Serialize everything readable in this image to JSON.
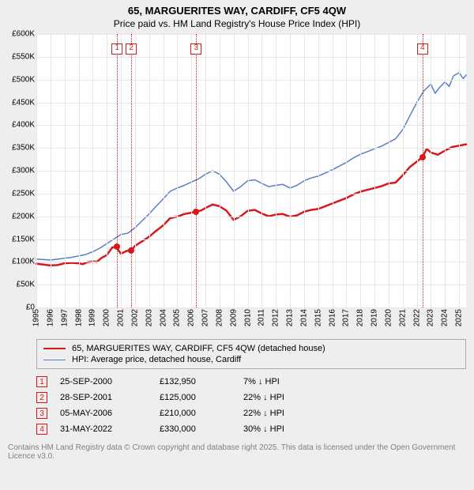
{
  "title": "65, MARGUERITES WAY, CARDIFF, CF5 4QW",
  "subtitle": "Price paid vs. HM Land Registry's House Price Index (HPI)",
  "chart": {
    "type": "line",
    "background": "#ffffff",
    "grid_color": "#e6e6e6",
    "x": {
      "min": 1995,
      "max": 2025.5,
      "ticks": [
        1995,
        1996,
        1997,
        1998,
        1999,
        2000,
        2001,
        2002,
        2003,
        2004,
        2005,
        2006,
        2007,
        2008,
        2009,
        2010,
        2011,
        2012,
        2013,
        2014,
        2015,
        2016,
        2017,
        2018,
        2019,
        2020,
        2021,
        2022,
        2023,
        2024,
        2025
      ]
    },
    "y": {
      "min": 0,
      "max": 600,
      "ticks": [
        0,
        50,
        100,
        150,
        200,
        250,
        300,
        350,
        400,
        450,
        500,
        550,
        600
      ],
      "labels": [
        "£0",
        "£50K",
        "£100K",
        "£150K",
        "£200K",
        "£250K",
        "£300K",
        "£350K",
        "£400K",
        "£450K",
        "£500K",
        "£550K",
        "£600K"
      ]
    },
    "series": [
      {
        "name": "65, MARGUERITES WAY, CARDIFF, CF5 4QW (detached house)",
        "color": "#d8171a",
        "width": 2.5,
        "points": [
          [
            1995,
            96
          ],
          [
            1995.5,
            94
          ],
          [
            1996,
            92
          ],
          [
            1996.5,
            93
          ],
          [
            1997,
            97
          ],
          [
            1997.5,
            98
          ],
          [
            1998,
            97
          ],
          [
            1998.3,
            95
          ],
          [
            1998.6,
            99
          ],
          [
            1999,
            101
          ],
          [
            1999.3,
            100
          ],
          [
            1999.6,
            108
          ],
          [
            2000,
            115
          ],
          [
            2000.4,
            132
          ],
          [
            2000.7,
            131
          ],
          [
            2001,
            118
          ],
          [
            2001.4,
            124
          ],
          [
            2001.74,
            125
          ],
          [
            2002,
            135
          ],
          [
            2002.5,
            145
          ],
          [
            2003,
            155
          ],
          [
            2003.5,
            168
          ],
          [
            2004,
            180
          ],
          [
            2004.5,
            196
          ],
          [
            2005,
            199
          ],
          [
            2005.5,
            205
          ],
          [
            2006,
            208
          ],
          [
            2006.34,
            210
          ],
          [
            2006.7,
            213
          ],
          [
            2007,
            218
          ],
          [
            2007.5,
            226
          ],
          [
            2008,
            222
          ],
          [
            2008.5,
            212
          ],
          [
            2009,
            192
          ],
          [
            2009.5,
            200
          ],
          [
            2010,
            212
          ],
          [
            2010.5,
            214
          ],
          [
            2011,
            206
          ],
          [
            2011.5,
            200
          ],
          [
            2012,
            204
          ],
          [
            2012.5,
            205
          ],
          [
            2013,
            199
          ],
          [
            2013.5,
            202
          ],
          [
            2014,
            210
          ],
          [
            2014.5,
            214
          ],
          [
            2015,
            216
          ],
          [
            2015.5,
            222
          ],
          [
            2016,
            228
          ],
          [
            2016.5,
            234
          ],
          [
            2017,
            240
          ],
          [
            2017.5,
            248
          ],
          [
            2018,
            254
          ],
          [
            2018.5,
            258
          ],
          [
            2019,
            262
          ],
          [
            2019.5,
            266
          ],
          [
            2020,
            272
          ],
          [
            2020.5,
            274
          ],
          [
            2021,
            290
          ],
          [
            2021.5,
            308
          ],
          [
            2022,
            320
          ],
          [
            2022.41,
            330
          ],
          [
            2022.7,
            348
          ],
          [
            2023,
            340
          ],
          [
            2023.5,
            335
          ],
          [
            2024,
            344
          ],
          [
            2024.5,
            352
          ],
          [
            2025,
            355
          ],
          [
            2025.5,
            358
          ]
        ]
      },
      {
        "name": "HPI: Average price, detached house, Cardiff",
        "color": "#5a7fbf",
        "width": 1.5,
        "points": [
          [
            1995,
            106
          ],
          [
            1995.5,
            105
          ],
          [
            1996,
            104
          ],
          [
            1996.5,
            106
          ],
          [
            1997,
            108
          ],
          [
            1997.5,
            110
          ],
          [
            1998,
            113
          ],
          [
            1998.5,
            116
          ],
          [
            1999,
            122
          ],
          [
            1999.5,
            130
          ],
          [
            2000,
            140
          ],
          [
            2000.5,
            150
          ],
          [
            2001,
            160
          ],
          [
            2001.5,
            163
          ],
          [
            2002,
            175
          ],
          [
            2002.5,
            190
          ],
          [
            2003,
            205
          ],
          [
            2003.5,
            222
          ],
          [
            2004,
            238
          ],
          [
            2004.5,
            255
          ],
          [
            2005,
            262
          ],
          [
            2005.5,
            268
          ],
          [
            2006,
            275
          ],
          [
            2006.5,
            282
          ],
          [
            2007,
            292
          ],
          [
            2007.5,
            300
          ],
          [
            2008,
            292
          ],
          [
            2008.5,
            275
          ],
          [
            2009,
            255
          ],
          [
            2009.5,
            265
          ],
          [
            2010,
            278
          ],
          [
            2010.5,
            280
          ],
          [
            2011,
            272
          ],
          [
            2011.5,
            265
          ],
          [
            2012,
            268
          ],
          [
            2012.5,
            270
          ],
          [
            2013,
            262
          ],
          [
            2013.5,
            268
          ],
          [
            2014,
            278
          ],
          [
            2014.5,
            284
          ],
          [
            2015,
            288
          ],
          [
            2015.5,
            295
          ],
          [
            2016,
            302
          ],
          [
            2016.5,
            310
          ],
          [
            2017,
            318
          ],
          [
            2017.5,
            328
          ],
          [
            2018,
            336
          ],
          [
            2018.5,
            342
          ],
          [
            2019,
            348
          ],
          [
            2019.5,
            354
          ],
          [
            2020,
            362
          ],
          [
            2020.5,
            370
          ],
          [
            2021,
            390
          ],
          [
            2021.5,
            420
          ],
          [
            2022,
            450
          ],
          [
            2022.5,
            475
          ],
          [
            2023,
            490
          ],
          [
            2023.3,
            470
          ],
          [
            2023.6,
            482
          ],
          [
            2024,
            495
          ],
          [
            2024.3,
            485
          ],
          [
            2024.6,
            508
          ],
          [
            2025,
            515
          ],
          [
            2025.3,
            502
          ],
          [
            2025.5,
            510
          ]
        ]
      }
    ],
    "transactions": [
      {
        "n": 1,
        "year": 2000.73,
        "value": 132.95,
        "date": "25-SEP-2000",
        "price": "£132,950",
        "delta": "7% ↓ HPI",
        "color": "#d8171a"
      },
      {
        "n": 2,
        "year": 2001.74,
        "value": 125,
        "date": "28-SEP-2001",
        "price": "£125,000",
        "delta": "22% ↓ HPI",
        "color": "#d8171a"
      },
      {
        "n": 3,
        "year": 2006.34,
        "value": 210,
        "date": "05-MAY-2006",
        "price": "£210,000",
        "delta": "22% ↓ HPI",
        "color": "#d8171a"
      },
      {
        "n": 4,
        "year": 2022.41,
        "value": 330,
        "date": "31-MAY-2022",
        "price": "£330,000",
        "delta": "30% ↓ HPI",
        "color": "#d8171a"
      }
    ]
  },
  "footer": "Contains HM Land Registry data © Crown copyright and database right 2025. This data is licensed under the Open Government Licence v3.0."
}
